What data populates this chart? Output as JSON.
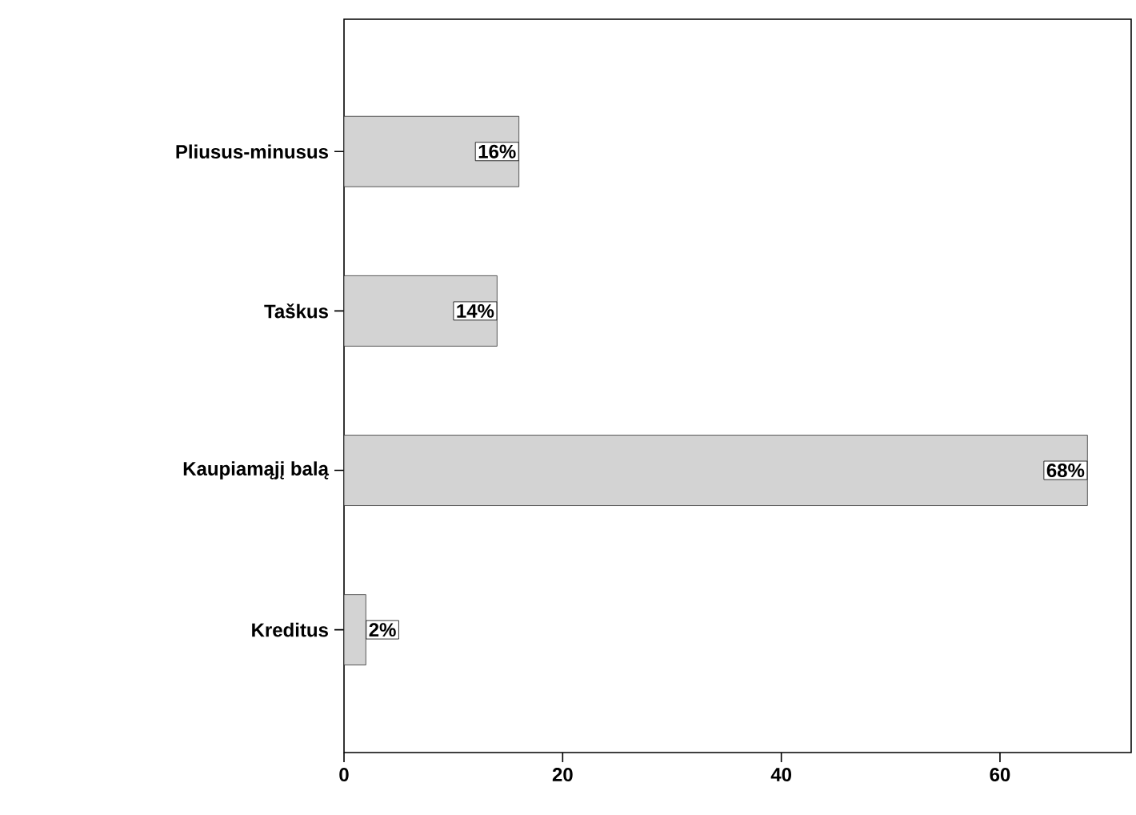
{
  "chart_data": {
    "type": "bar",
    "orientation": "horizontal",
    "categories": [
      "Pliusus-minusus",
      "Taškus",
      "Kaupiamąjį balą",
      "Kreditus"
    ],
    "values": [
      16,
      14,
      68,
      2
    ],
    "value_labels": [
      "16%",
      "14%",
      "68%",
      "2%"
    ],
    "color": "#d3d3d3",
    "xlim": [
      0,
      72
    ],
    "xticks": [
      0,
      20,
      40,
      60
    ]
  }
}
